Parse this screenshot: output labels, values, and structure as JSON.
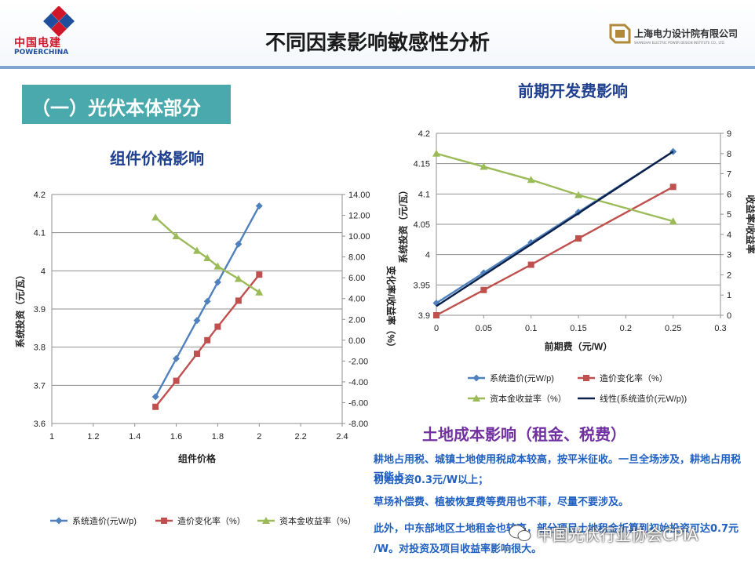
{
  "header": {
    "title": "不同因素影响敏感性分析",
    "logo_left_cn": "中国电建",
    "logo_left_en": "POWERCHINA",
    "logo_right_cn": "上海电力设计院有限公司",
    "logo_right_en": "SHANGHAI ELECTRIC POWER DESIGN INSTITUTE CO., LTD."
  },
  "section": {
    "label": "（一）光伏本体部分"
  },
  "colors": {
    "blue": "#4f81bd",
    "red": "#c0504d",
    "green": "#9bbb59",
    "navy": "#0a1f4a",
    "teal": "#4aa9ac"
  },
  "chart_data": [
    {
      "type": "line",
      "title": "组件价格影响",
      "xlabel": "组件价格",
      "ylabel": "系统投资（元/瓦）",
      "y2label": "变化率/收益率（%）",
      "xlim": [
        1,
        2.4
      ],
      "ylim": [
        3.6,
        4.2
      ],
      "y2lim": [
        -8,
        14
      ],
      "x_ticks": [
        "1",
        "1.2",
        "1.4",
        "1.6",
        "1.8",
        "2",
        "2.2",
        "2.4"
      ],
      "y_ticks": [
        "3.6",
        "3.7",
        "3.8",
        "3.9",
        "4",
        "4.1",
        "4.2"
      ],
      "y2_ticks": [
        "-8.00",
        "-6.00",
        "-4.00",
        "-2.00",
        "0.00",
        "2.00",
        "4.00",
        "6.00",
        "8.00",
        "10.00",
        "12.00",
        "14.00"
      ],
      "series": [
        {
          "name": "系统造价(元W/p)",
          "axis": "left",
          "marker": "diamond",
          "color": "#4f81bd",
          "x": [
            1.5,
            1.6,
            1.7,
            1.75,
            1.8,
            1.9,
            2.0
          ],
          "values": [
            3.67,
            3.77,
            3.87,
            3.92,
            3.97,
            4.07,
            4.17
          ]
        },
        {
          "name": "造价变化率（%）",
          "axis": "right",
          "marker": "square",
          "color": "#c0504d",
          "x": [
            1.5,
            1.6,
            1.7,
            1.75,
            1.8,
            1.9,
            2.0
          ],
          "values": [
            -6.4,
            -3.9,
            -1.3,
            0.0,
            1.3,
            3.8,
            6.3
          ]
        },
        {
          "name": "资本金收益率（%）",
          "axis": "right",
          "marker": "triangle",
          "color": "#9bbb59",
          "x": [
            1.5,
            1.6,
            1.7,
            1.75,
            1.8,
            1.9,
            2.0
          ],
          "values": [
            11.8,
            10.0,
            8.6,
            7.9,
            7.1,
            5.9,
            4.6
          ]
        }
      ],
      "legend": [
        "系统造价(元W/p)",
        "造价变化率（%）",
        "资本金收益率（%）"
      ],
      "legend_position": "bottom"
    },
    {
      "type": "line",
      "title": "前期开发费影响",
      "xlabel": "前期费（元/W）",
      "ylabel": "系统投资（元/瓦）",
      "y2label": "收益率/收益率",
      "xlim": [
        0,
        0.3
      ],
      "ylim": [
        3.9,
        4.2
      ],
      "y2lim": [
        0,
        9
      ],
      "x_ticks": [
        "0",
        "0.05",
        "0.1",
        "0.15",
        "0.2",
        "0.25",
        "0.3"
      ],
      "y_ticks": [
        "3.9",
        "3.95",
        "4",
        "4.05",
        "4.1",
        "4.15",
        "4.2"
      ],
      "y2_ticks": [
        "0",
        "1",
        "2",
        "3",
        "4",
        "5",
        "6",
        "7",
        "8",
        "9"
      ],
      "series": [
        {
          "name": "系统造价(元W/p)",
          "axis": "left",
          "marker": "diamond",
          "color": "#4f81bd",
          "x": [
            0,
            0.05,
            0.1,
            0.15,
            0.25
          ],
          "values": [
            3.92,
            3.97,
            4.02,
            4.07,
            4.17
          ]
        },
        {
          "name": "造价变化率（%）",
          "axis": "right",
          "marker": "square",
          "color": "#c0504d",
          "x": [
            0,
            0.05,
            0.1,
            0.15,
            0.25
          ],
          "values": [
            0.0,
            1.25,
            2.5,
            3.8,
            6.35
          ]
        },
        {
          "name": "资本金收益率（%）",
          "axis": "right",
          "marker": "triangle",
          "color": "#9bbb59",
          "x": [
            0,
            0.05,
            0.1,
            0.15,
            0.25
          ],
          "values": [
            8.0,
            7.35,
            6.7,
            5.95,
            4.65
          ]
        },
        {
          "name": "线性(系统造价(元W/p))",
          "axis": "left",
          "marker": "none",
          "color": "#0a1f4a",
          "x": [
            0,
            0.25
          ],
          "values": [
            3.915,
            4.17
          ]
        }
      ],
      "legend": [
        "系统造价(元W/p)",
        "造价变化率（%）",
        "资本金收益率（%）",
        "线性(系统造价(元W/p))"
      ],
      "legend_position": "bottom"
    }
  ],
  "land": {
    "title": "土地成本影响（租金、税费）",
    "lines": [
      "耕地占用税、城镇土地使用税成本较高，按平米征收。一旦全场涉及，耕地占用税可能占",
      "初始投资0.3元/W以上；",
      "草场补偿费、植被恢复费等费用也不菲，尽量不要涉及。",
      "此外，中东部地区土地租金也较高，部分项目土地租金折算到初始投资可达0.7元",
      "/W。对投资及项目收益率影响很大。"
    ]
  },
  "watermark": "中国光伏行业协会CPIA"
}
